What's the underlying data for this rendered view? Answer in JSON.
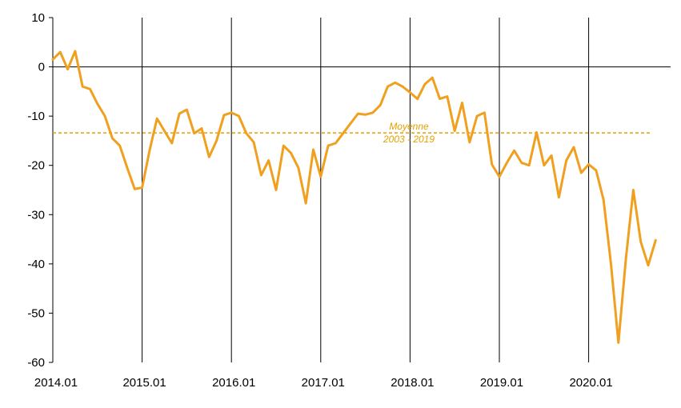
{
  "chart_data": {
    "type": "line",
    "title": "",
    "xlabel": "",
    "ylabel": "",
    "ylim": [
      -60,
      10
    ],
    "yticks": [
      10,
      0,
      -10,
      -20,
      -30,
      -40,
      -50,
      -60
    ],
    "xticks": [
      "2014.01",
      "2015.01",
      "2016.01",
      "2017.01",
      "2018.01",
      "2019.01",
      "2020.01"
    ],
    "xlim": [
      "2014-01",
      "2020-10"
    ],
    "grid": "vertical lines at January of each year",
    "series": [
      {
        "color": "#F0A01E",
        "points": [
          [
            "2014-01",
            1.5
          ],
          [
            "2014-02",
            3.0
          ],
          [
            "2014-03",
            -0.5
          ],
          [
            "2014-04",
            3.2
          ],
          [
            "2014-05",
            -4.0
          ],
          [
            "2014-06",
            -4.5
          ],
          [
            "2014-07",
            -7.5
          ],
          [
            "2014-08",
            -10.0
          ],
          [
            "2014-09",
            -14.5
          ],
          [
            "2014-10",
            -16.0
          ],
          [
            "2014-11",
            -20.5
          ],
          [
            "2014-12",
            -24.8
          ],
          [
            "2015-01",
            -24.5
          ],
          [
            "2015-02",
            -17.0
          ],
          [
            "2015-03",
            -10.5
          ],
          [
            "2015-04",
            -13.0
          ],
          [
            "2015-05",
            -15.5
          ],
          [
            "2015-06",
            -9.5
          ],
          [
            "2015-07",
            -8.7
          ],
          [
            "2015-08",
            -13.5
          ],
          [
            "2015-09",
            -12.5
          ],
          [
            "2015-10",
            -18.3
          ],
          [
            "2015-11",
            -15.0
          ],
          [
            "2015-12",
            -9.8
          ],
          [
            "2016-01",
            -9.3
          ],
          [
            "2016-02",
            -10.0
          ],
          [
            "2016-03",
            -13.5
          ],
          [
            "2016-04",
            -15.3
          ],
          [
            "2016-05",
            -22.0
          ],
          [
            "2016-06",
            -19.0
          ],
          [
            "2016-07",
            -25.0
          ],
          [
            "2016-08",
            -16.0
          ],
          [
            "2016-09",
            -17.5
          ],
          [
            "2016-10",
            -20.5
          ],
          [
            "2016-11",
            -27.7
          ],
          [
            "2016-12",
            -16.8
          ],
          [
            "2017-01",
            -22.3
          ],
          [
            "2017-02",
            -16.0
          ],
          [
            "2017-03",
            -15.5
          ],
          [
            "2017-04",
            -13.5
          ],
          [
            "2017-05",
            -11.5
          ],
          [
            "2017-06",
            -9.5
          ],
          [
            "2017-07",
            -9.7
          ],
          [
            "2017-08",
            -9.3
          ],
          [
            "2017-09",
            -7.8
          ],
          [
            "2017-10",
            -4.0
          ],
          [
            "2017-11",
            -3.2
          ],
          [
            "2017-12",
            -4.0
          ],
          [
            "2018-01",
            -5.2
          ],
          [
            "2018-02",
            -6.5
          ],
          [
            "2018-03",
            -3.5
          ],
          [
            "2018-04",
            -2.2
          ],
          [
            "2018-05",
            -6.5
          ],
          [
            "2018-06",
            -6.0
          ],
          [
            "2018-07",
            -13.0
          ],
          [
            "2018-08",
            -7.3
          ],
          [
            "2018-09",
            -15.3
          ],
          [
            "2018-10",
            -10.0
          ],
          [
            "2018-11",
            -9.3
          ],
          [
            "2018-12",
            -19.8
          ],
          [
            "2019-01",
            -22.3
          ],
          [
            "2019-02",
            -19.5
          ],
          [
            "2019-03",
            -17.0
          ],
          [
            "2019-04",
            -19.5
          ],
          [
            "2019-05",
            -20.0
          ],
          [
            "2019-06",
            -13.3
          ],
          [
            "2019-07",
            -20.0
          ],
          [
            "2019-08",
            -18.0
          ],
          [
            "2019-09",
            -26.5
          ],
          [
            "2019-10",
            -19.0
          ],
          [
            "2019-11",
            -16.3
          ],
          [
            "2019-12",
            -21.5
          ],
          [
            "2020-01",
            -19.8
          ],
          [
            "2020-02",
            -21.0
          ],
          [
            "2020-03",
            -27.0
          ],
          [
            "2020-04",
            -40.0
          ],
          [
            "2020-05",
            -56.0
          ],
          [
            "2020-06",
            -39.0
          ],
          [
            "2020-07",
            -25.0
          ],
          [
            "2020-08",
            -35.5
          ],
          [
            "2020-09",
            -40.3
          ],
          [
            "2020-10",
            -35.2
          ]
        ]
      }
    ],
    "reference_line": {
      "value": -13.4,
      "style": "dashed",
      "color": "#E6A000",
      "label_line1": "Moyenne",
      "label_line2": "2003 - 2019"
    }
  }
}
